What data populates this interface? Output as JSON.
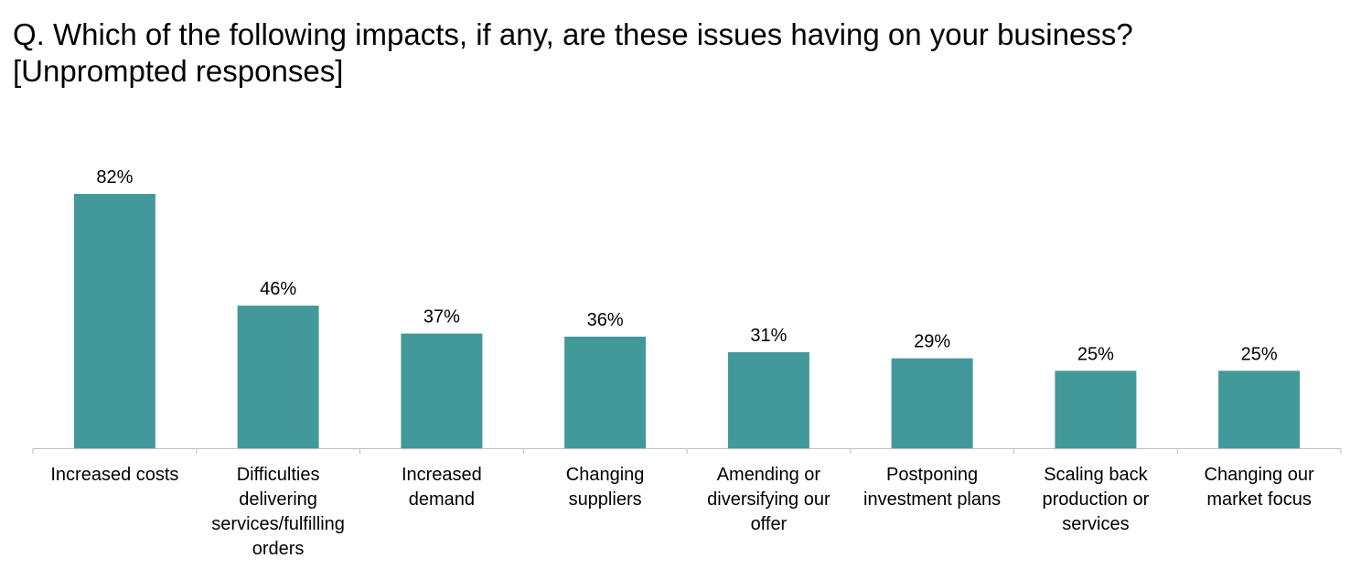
{
  "title": {
    "line1": "Q. Which of the following impacts, if any, are these issues having on your business?",
    "line2": "[Unprompted responses]"
  },
  "colors": {
    "bar": "#43999A",
    "axis": "#BFBFBF",
    "text": "#000000"
  },
  "chart_data": {
    "type": "bar",
    "title": "Q. Which of the following impacts, if any, are these issues having on your business? [Unprompted responses]",
    "categories": [
      [
        "Increased costs"
      ],
      [
        "Difficulties",
        "delivering",
        "services/fulfilling",
        "orders"
      ],
      [
        "Increased",
        "demand"
      ],
      [
        "Changing",
        "suppliers"
      ],
      [
        "Amending or",
        "diversifying our",
        "offer"
      ],
      [
        "Postponing",
        "investment plans"
      ],
      [
        "Scaling back",
        "production or",
        "services"
      ],
      [
        "Changing our",
        "market focus"
      ]
    ],
    "values": [
      82,
      46,
      37,
      36,
      31,
      29,
      25,
      25
    ],
    "value_labels": [
      "82%",
      "46%",
      "37%",
      "36%",
      "31%",
      "29%",
      "25%",
      "25%"
    ],
    "unit": "%",
    "ylim": [
      0,
      100
    ],
    "grid": false,
    "legend": "none"
  }
}
